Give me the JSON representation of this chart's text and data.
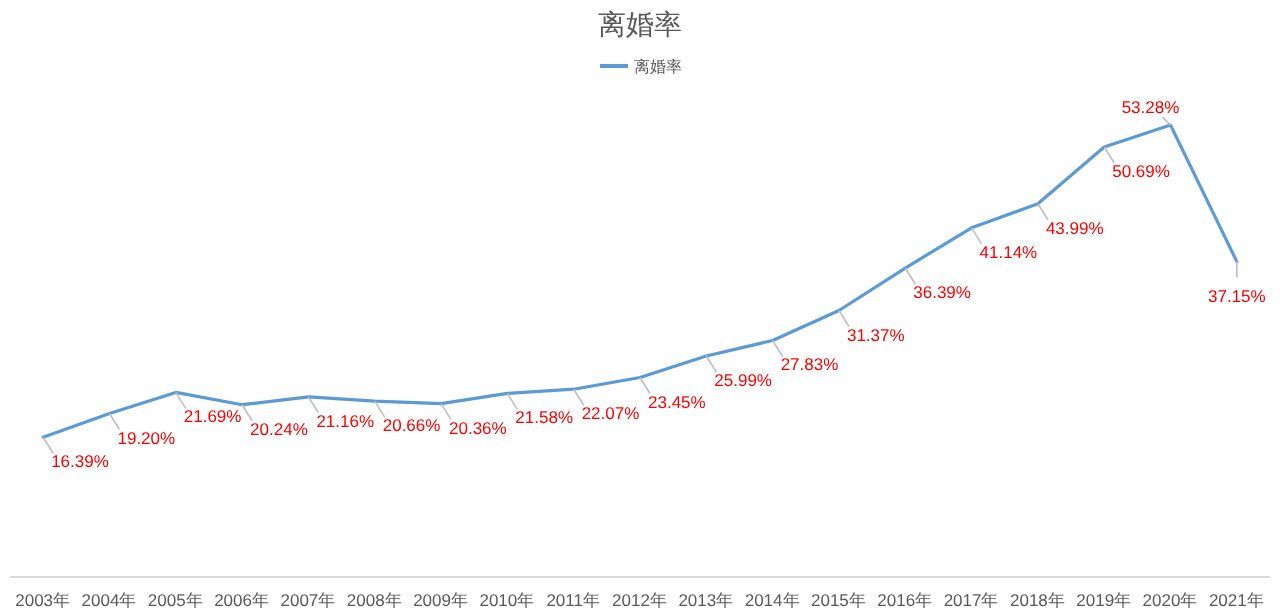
{
  "chart_data": {
    "type": "line",
    "title": "离婚率",
    "legend": "top",
    "categories": [
      "2003年",
      "2004年",
      "2005年",
      "2006年",
      "2007年",
      "2008年",
      "2009年",
      "2010年",
      "2011年",
      "2012年",
      "2013年",
      "2014年",
      "2015年",
      "2016年",
      "2017年",
      "2018年",
      "2019年",
      "2020年",
      "2021年"
    ],
    "series": [
      {
        "name": "离婚率",
        "color": "#5b9bd5",
        "values": [
          16.39,
          19.2,
          21.69,
          20.24,
          21.16,
          20.66,
          20.36,
          21.58,
          22.07,
          23.45,
          25.99,
          27.83,
          31.37,
          36.39,
          41.14,
          43.99,
          50.69,
          53.28,
          37.15
        ],
        "value_labels": [
          "16.39%",
          "19.20%",
          "21.69%",
          "20.24%",
          "21.16%",
          "20.66%",
          "20.36%",
          "21.58%",
          "22.07%",
          "23.45%",
          "25.99%",
          "27.83%",
          "31.37%",
          "36.39%",
          "41.14%",
          "43.99%",
          "50.69%",
          "53.28%",
          "37.15%"
        ]
      }
    ],
    "grid": false,
    "marker": "none",
    "line_style": "solid"
  }
}
